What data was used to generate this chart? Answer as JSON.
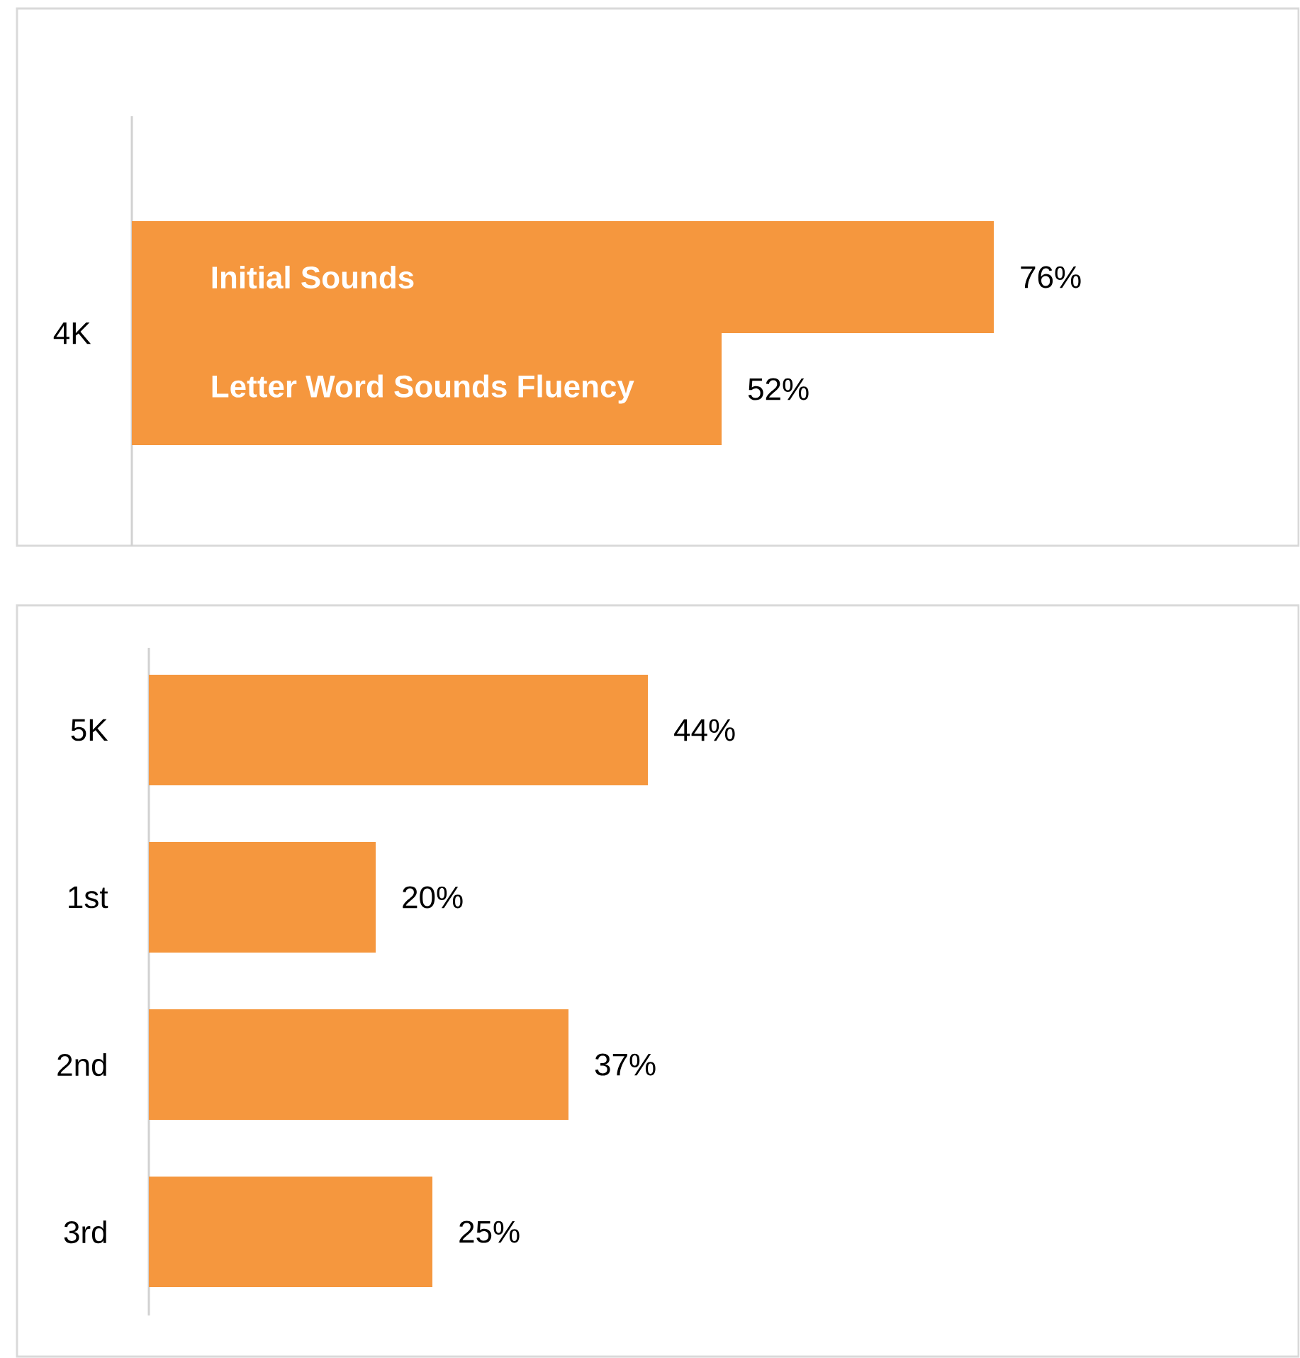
{
  "chart_data": [
    {
      "type": "bar",
      "orientation": "horizontal",
      "categories": [
        "4K"
      ],
      "series": [
        {
          "name": "Initial Sounds",
          "color": "#f5973e",
          "values": [
            76
          ],
          "value_labels": [
            "76%"
          ]
        },
        {
          "name": "Letter Word Sounds Fluency",
          "color": "#f5973e",
          "values": [
            52
          ],
          "value_labels": [
            "52%"
          ]
        }
      ]
    },
    {
      "type": "bar",
      "orientation": "horizontal",
      "categories": [
        "5K",
        "1st",
        "2nd",
        "3rd"
      ],
      "color": "#f5973e",
      "values": [
        44,
        20,
        37,
        25
      ],
      "value_labels": [
        "44%",
        "20%",
        "37%",
        "25%"
      ]
    }
  ]
}
